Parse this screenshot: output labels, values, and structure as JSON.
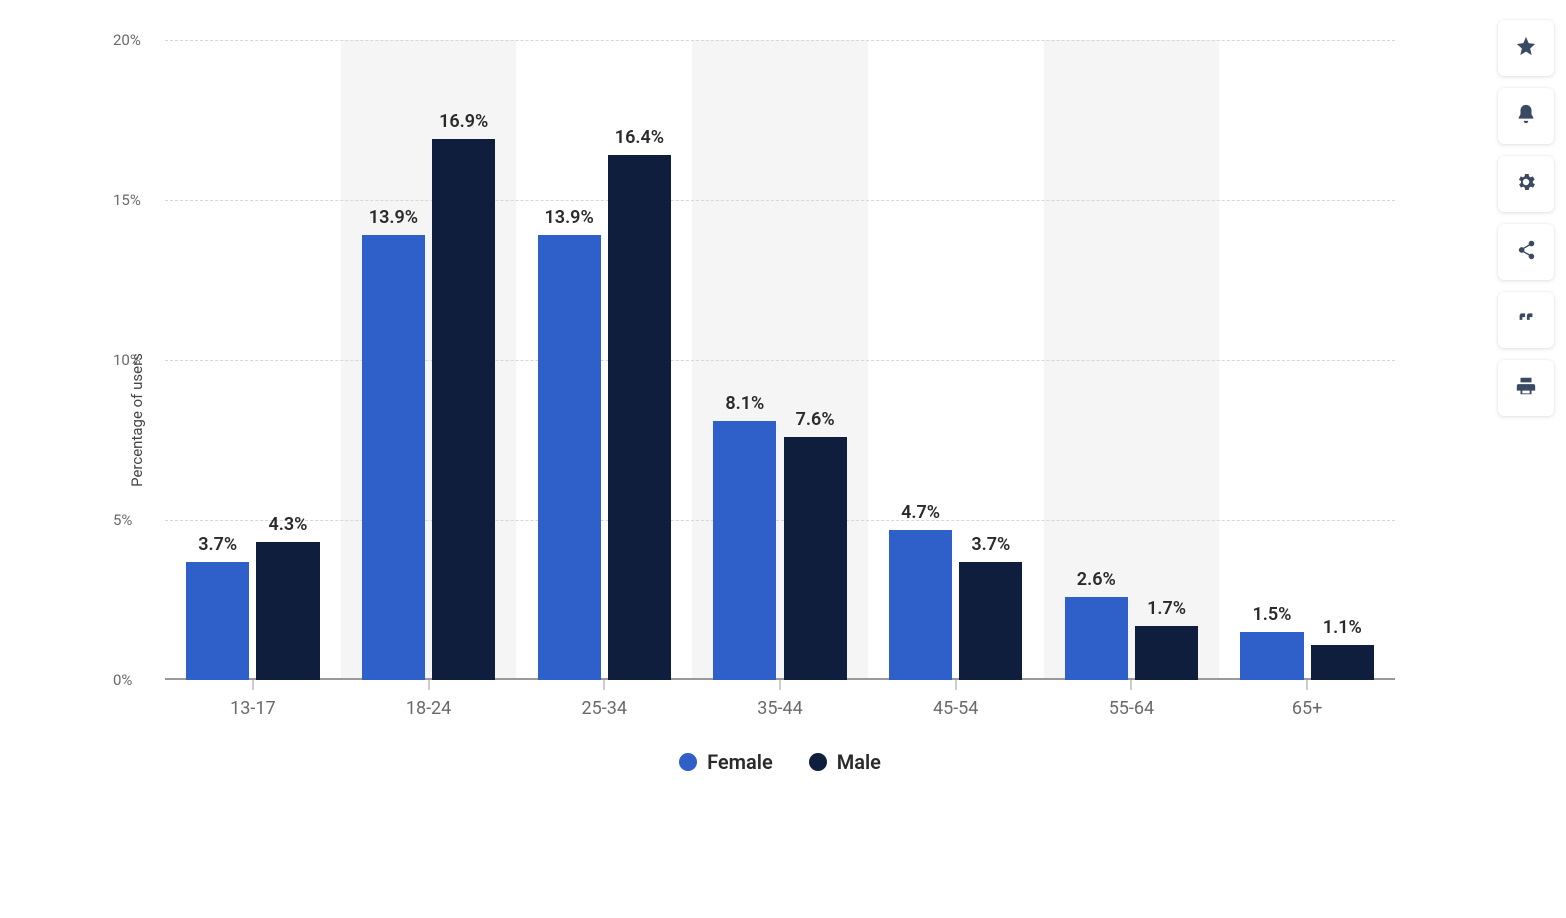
{
  "chart": {
    "type": "grouped-bar",
    "categories": [
      "13-17",
      "18-24",
      "25-34",
      "35-44",
      "45-54",
      "55-64",
      "65+"
    ],
    "series": [
      {
        "name": "Female",
        "color": "#2f5fc9",
        "values": [
          3.7,
          13.9,
          13.9,
          8.1,
          4.7,
          2.6,
          1.5
        ]
      },
      {
        "name": "Male",
        "color": "#0f1e3d",
        "values": [
          4.3,
          16.9,
          16.4,
          7.6,
          3.7,
          1.7,
          1.1
        ]
      }
    ],
    "value_labels": [
      [
        "3.7%",
        "13.9%",
        "13.9%",
        "8.1%",
        "4.7%",
        "2.6%",
        "1.5%"
      ],
      [
        "4.3%",
        "16.9%",
        "16.4%",
        "7.6%",
        "3.7%",
        "1.7%",
        "1.1%"
      ]
    ],
    "ylabel": "Percentage of users",
    "ylim": [
      0,
      20
    ],
    "yticks": [
      0,
      5,
      10,
      15,
      20
    ],
    "ytick_labels": [
      "0%",
      "5%",
      "10%",
      "15%",
      "20%"
    ],
    "grid_color": "#d7d7d7",
    "background_color": "#ffffff",
    "band_shade_color": "#f5f5f5",
    "axis_line_color": "#9a9a9a",
    "label_fontsize": 18,
    "axis_tick_fontsize": 15,
    "legend_fontsize": 20,
    "bar_width_ratio": 0.36,
    "bar_gap_ratio": 0.04
  },
  "toolbar": {
    "buttons": [
      {
        "name": "favorite",
        "icon": "star"
      },
      {
        "name": "notify",
        "icon": "bell"
      },
      {
        "name": "settings",
        "icon": "gear"
      },
      {
        "name": "share",
        "icon": "share"
      },
      {
        "name": "cite",
        "icon": "quote"
      },
      {
        "name": "print",
        "icon": "print"
      }
    ]
  }
}
